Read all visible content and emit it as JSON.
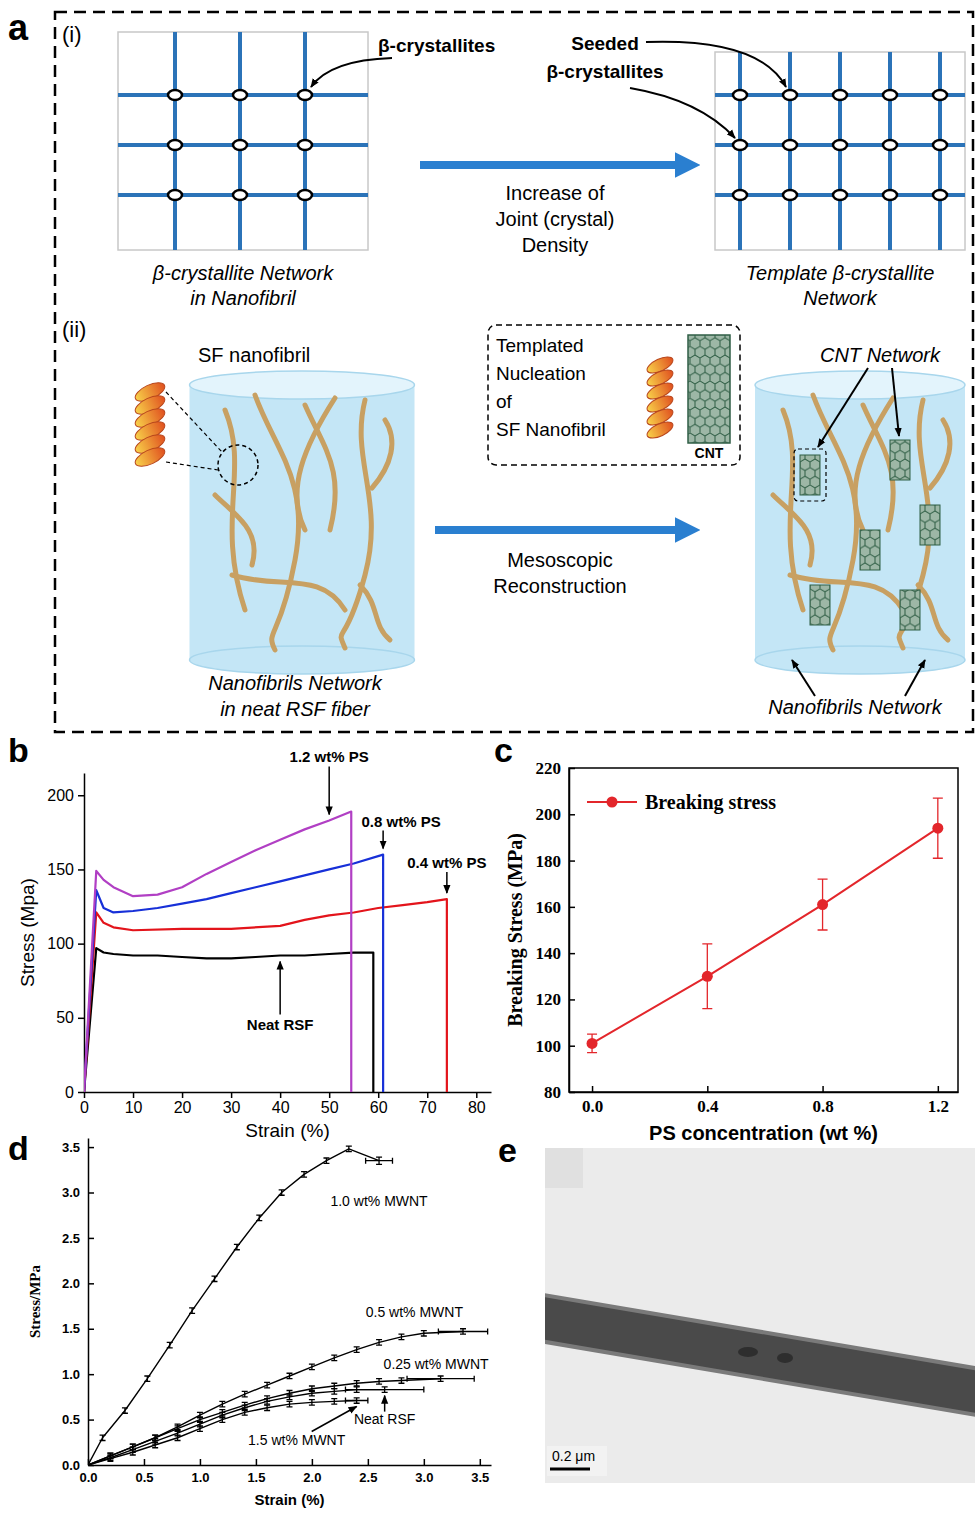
{
  "diagram": {
    "panel": "a",
    "part_i": {
      "label": "(i)",
      "crystallites_label": "β-crystallites",
      "seeded_label": [
        "Seeded",
        "β-crystallites"
      ],
      "arrow_label": [
        "Increase of",
        "Joint (crystal)",
        "Density"
      ],
      "left_caption": [
        "β-crystallite Network",
        "in Nanofibril"
      ],
      "right_caption": [
        "Template β-crystallite",
        "Network"
      ]
    },
    "part_ii": {
      "label": "(ii)",
      "nanofibril_label": "SF nanofibril",
      "inset_label": [
        "Templated",
        "Nucleation",
        "of",
        "SF Nanofibril"
      ],
      "inset_cnt_label": "CNT",
      "cnt_network_label": "CNT Network",
      "arrow_label": [
        "Mesoscopic",
        "Reconstruction"
      ],
      "left_caption": [
        "Nanofibrils Network",
        "in neat RSF fiber"
      ],
      "right_caption": "Nanofibrils Network"
    }
  },
  "chart_data": [
    {
      "panel": "b",
      "type": "line",
      "x_label": "Strain (%)",
      "y_label": "Stress (Mpa)",
      "xlim": [
        0,
        83
      ],
      "xticks": [
        0,
        10,
        20,
        30,
        40,
        50,
        60,
        70,
        80
      ],
      "ylim": [
        0,
        215
      ],
      "yticks": [
        0,
        50,
        100,
        150,
        200
      ],
      "series": [
        {
          "name": "Neat RSF",
          "color": "#000000",
          "x": [
            0,
            2.5,
            4,
            6,
            10,
            15,
            20,
            25,
            30,
            35,
            40,
            45,
            50,
            55,
            59,
            59
          ],
          "values": [
            0,
            97,
            94,
            93,
            92,
            92,
            91,
            90,
            90,
            91,
            92,
            92,
            93,
            94,
            94,
            0
          ]
        },
        {
          "name": "0.4 wt% PS",
          "color": "#e3141b",
          "x": [
            0,
            2.5,
            4,
            6,
            10,
            20,
            30,
            40,
            45,
            50,
            55,
            60,
            65,
            70,
            74,
            74
          ],
          "values": [
            0,
            121,
            114,
            111,
            109,
            110,
            110,
            112,
            116,
            119,
            121,
            124,
            126,
            128,
            130,
            0
          ]
        },
        {
          "name": "0.8 wt% PS",
          "color": "#1730d8",
          "x": [
            0,
            2.5,
            4,
            6,
            10,
            15,
            20,
            25,
            30,
            35,
            40,
            45,
            50,
            55,
            61,
            61
          ],
          "values": [
            0,
            136,
            124,
            121,
            122,
            124,
            127,
            130,
            134,
            138,
            142,
            146,
            150,
            154,
            160,
            0
          ]
        },
        {
          "name": "1.2 wt% PS",
          "color": "#b13fc4",
          "x": [
            0,
            2.5,
            4,
            6,
            10,
            15,
            20,
            25,
            30,
            35,
            40,
            45,
            50,
            54.5,
            54.5
          ],
          "values": [
            0,
            149,
            143,
            138,
            132,
            133,
            138,
            147,
            155,
            163,
            170,
            177,
            183,
            189,
            0
          ]
        }
      ]
    },
    {
      "panel": "c",
      "type": "line",
      "x_label": "PS concentration (wt %)",
      "y_label": "Breaking Stress (MPa)",
      "marker": "circle",
      "legend": "upper left",
      "x": [
        0,
        0.4,
        0.8,
        1.2
      ],
      "xlim": [
        -0.08,
        1.27
      ],
      "xticks": [
        {
          "value": 0,
          "label": "0.0"
        },
        0.4,
        0.8,
        1.2
      ],
      "ylim": [
        80,
        220
      ],
      "yticks": [
        80,
        100,
        120,
        140,
        160,
        180,
        200,
        220
      ],
      "series": [
        {
          "name": "Breaking stress",
          "color": "#e3262b",
          "values": [
            101,
            130,
            161,
            194
          ],
          "errors": [
            4,
            14,
            11,
            13
          ]
        }
      ]
    },
    {
      "panel": "d",
      "type": "line",
      "x_label": "Strain (%)",
      "y_label": "Stress/MPa",
      "xlim": [
        0,
        3.6
      ],
      "xticks": [
        {
          "value": 0,
          "label": "0.0"
        },
        0.5,
        {
          "value": 1,
          "label": "1.0"
        },
        1.5,
        {
          "value": 2,
          "label": "2.0"
        },
        2.5,
        {
          "value": 3,
          "label": "3.0"
        },
        3.5
      ],
      "ylim": [
        0,
        3.6
      ],
      "yticks": [
        {
          "value": 0,
          "label": "0.0"
        },
        0.5,
        {
          "value": 1,
          "label": "1.0"
        },
        1.5,
        {
          "value": 2,
          "label": "2.0"
        },
        2.5,
        {
          "value": 3,
          "label": "3.0"
        },
        3.5
      ],
      "series": [
        {
          "name": "1.0 wt% MWNT",
          "color": "#000000",
          "x": [
            0,
            0.13,
            0.33,
            0.53,
            0.73,
            0.93,
            1.13,
            1.33,
            1.53,
            1.73,
            1.93,
            2.13,
            2.33,
            2.6
          ],
          "values": [
            0,
            0.3,
            0.6,
            0.95,
            1.32,
            1.7,
            2.05,
            2.4,
            2.72,
            3.0,
            3.2,
            3.35,
            3.48,
            3.35
          ],
          "errors": [
            0,
            0.03,
            0.03,
            0.03,
            0.03,
            0.03,
            0.03,
            0.03,
            0.03,
            0.03,
            0.03,
            0.03,
            0.03,
            0.04
          ],
          "end_x_error": 0.12
        },
        {
          "name": "0.5 wt% MWNT",
          "color": "#000000",
          "x": [
            0,
            0.2,
            0.4,
            0.6,
            0.8,
            1.0,
            1.2,
            1.4,
            1.6,
            1.8,
            2.0,
            2.2,
            2.4,
            2.6,
            2.8,
            3.0,
            3.35
          ],
          "values": [
            0,
            0.1,
            0.2,
            0.3,
            0.42,
            0.55,
            0.67,
            0.78,
            0.88,
            0.98,
            1.08,
            1.18,
            1.27,
            1.35,
            1.41,
            1.45,
            1.47
          ],
          "errors": [
            0,
            0.03,
            0.03,
            0.03,
            0.03,
            0.03,
            0.03,
            0.03,
            0.03,
            0.03,
            0.03,
            0.03,
            0.03,
            0.03,
            0.03,
            0.03,
            0.03
          ],
          "end_x_error": 0.22
        },
        {
          "name": "0.25 wt% MWNT",
          "color": "#000000",
          "x": [
            0,
            0.2,
            0.4,
            0.6,
            0.8,
            1.0,
            1.2,
            1.4,
            1.6,
            1.8,
            2.0,
            2.2,
            2.4,
            2.6,
            2.8,
            3.15
          ],
          "values": [
            0,
            0.1,
            0.2,
            0.3,
            0.4,
            0.5,
            0.58,
            0.66,
            0.73,
            0.79,
            0.84,
            0.87,
            0.9,
            0.92,
            0.93,
            0.95
          ],
          "errors": [
            0,
            0.03,
            0.03,
            0.03,
            0.03,
            0.03,
            0.03,
            0.03,
            0.03,
            0.03,
            0.03,
            0.03,
            0.03,
            0.03,
            0.03,
            0.03
          ],
          "end_x_error": 0.3
        },
        {
          "name": "Neat RSF",
          "color": "#000000",
          "x": [
            0,
            0.2,
            0.4,
            0.6,
            0.8,
            1.0,
            1.2,
            1.4,
            1.6,
            1.8,
            2.0,
            2.2,
            2.4,
            2.65
          ],
          "values": [
            0,
            0.08,
            0.17,
            0.26,
            0.35,
            0.45,
            0.55,
            0.63,
            0.7,
            0.75,
            0.79,
            0.81,
            0.83,
            0.83
          ],
          "errors": [
            0,
            0.03,
            0.03,
            0.03,
            0.03,
            0.03,
            0.03,
            0.03,
            0.03,
            0.03,
            0.03,
            0.03,
            0.03,
            0.03
          ],
          "end_x_error": 0.35
        },
        {
          "name": "1.5 wt% MWNT",
          "color": "#000000",
          "x": [
            0,
            0.2,
            0.4,
            0.6,
            0.8,
            1.0,
            1.2,
            1.4,
            1.6,
            1.8,
            2.0,
            2.2,
            2.4
          ],
          "values": [
            0,
            0.07,
            0.14,
            0.22,
            0.3,
            0.4,
            0.5,
            0.58,
            0.63,
            0.67,
            0.69,
            0.7,
            0.71
          ],
          "errors": [
            0,
            0.03,
            0.03,
            0.03,
            0.03,
            0.03,
            0.03,
            0.03,
            0.03,
            0.03,
            0.03,
            0.03,
            0.03
          ],
          "end_x_error": 0.1
        }
      ]
    }
  ],
  "image": {
    "panel": "e",
    "scale_bar_label": "0.2 μm"
  }
}
